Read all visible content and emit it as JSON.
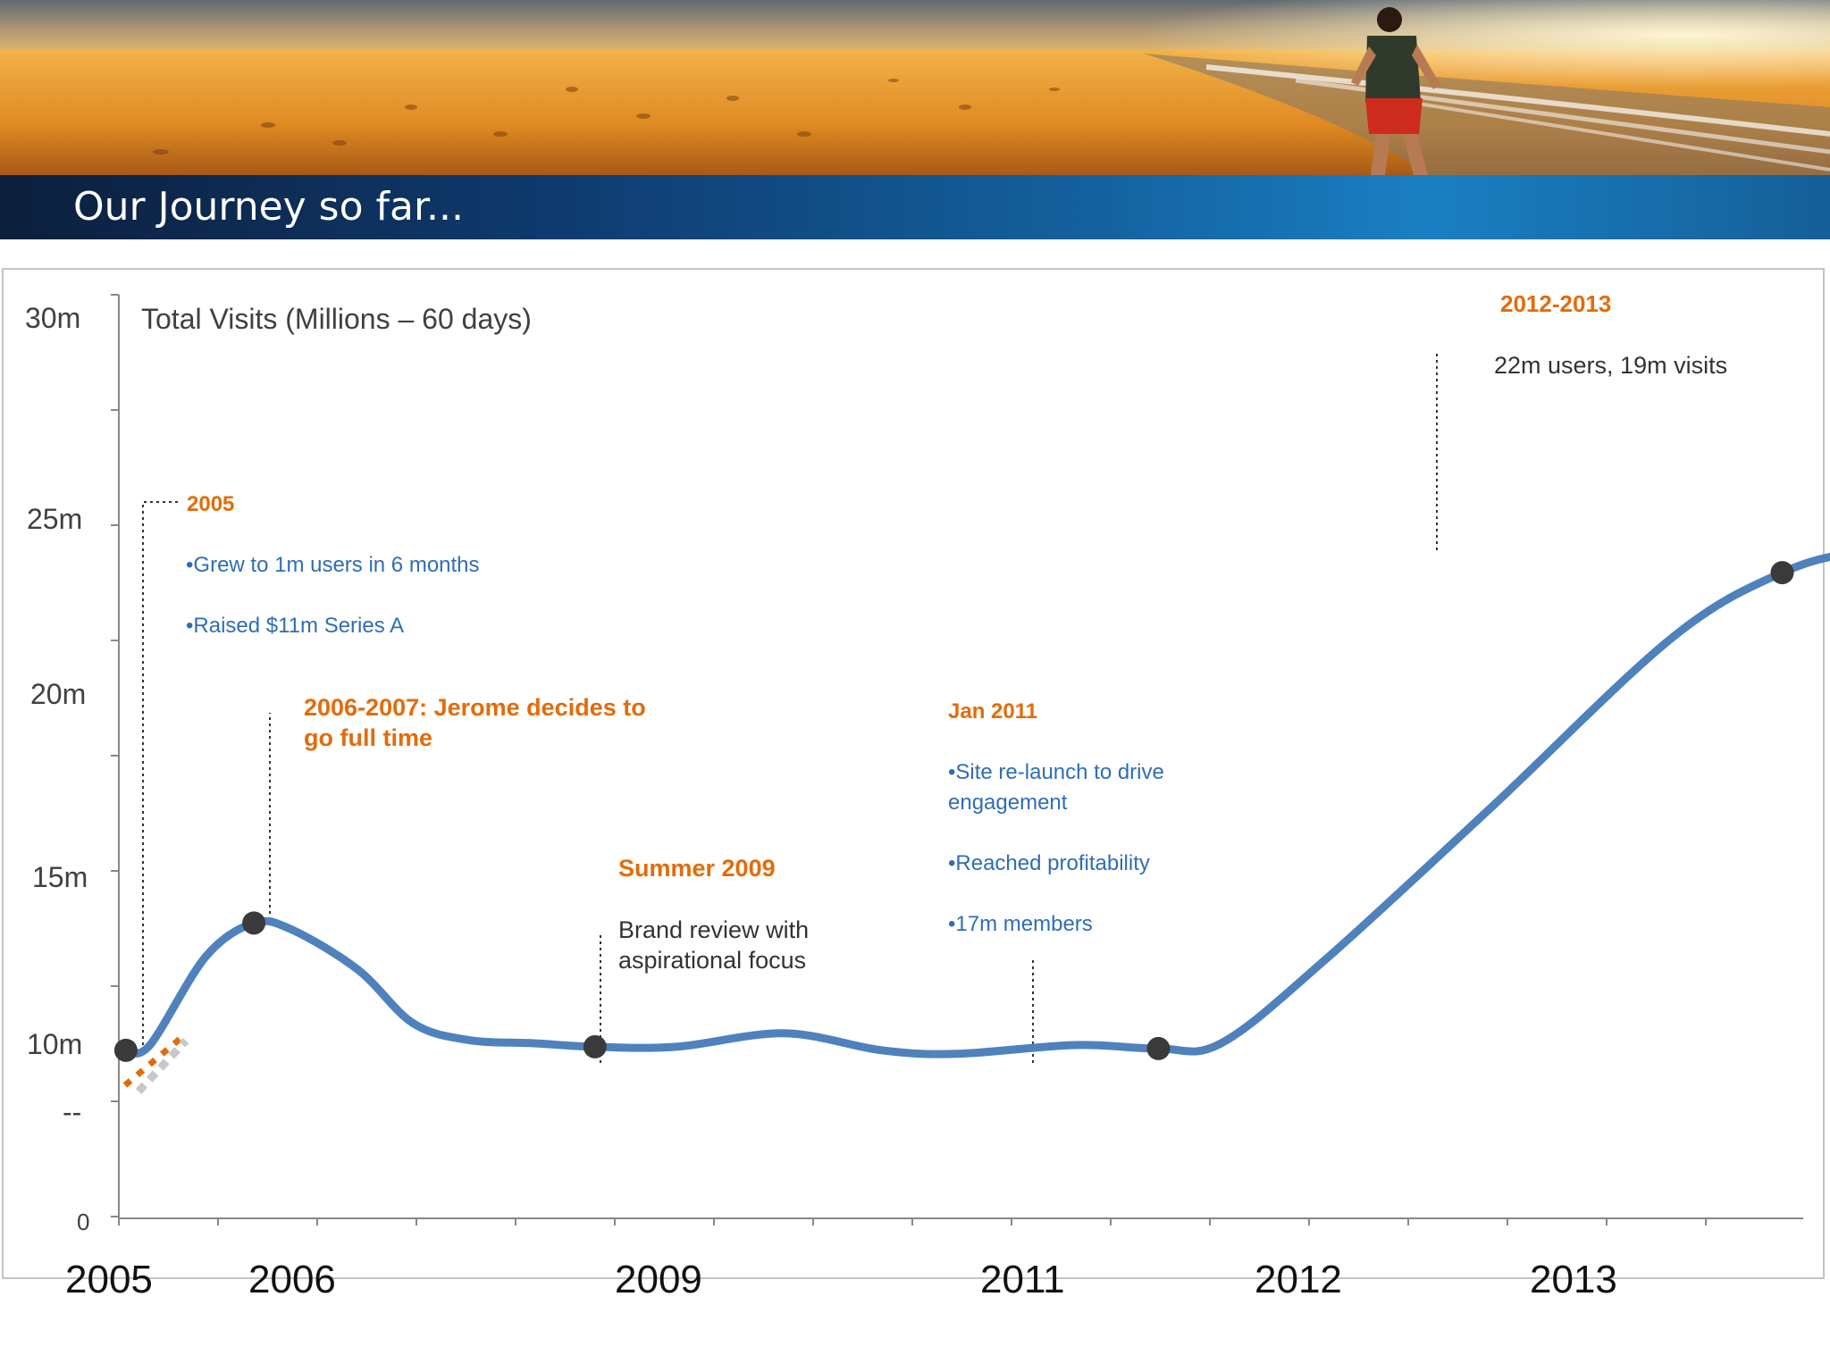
{
  "header": {
    "title": "Our Journey so far..."
  },
  "colors": {
    "line": "#4f81bd",
    "marker": "#3a3a3a",
    "accent": "#e36c09",
    "bullet": "#2f6db5",
    "title_bar": "#0f3a6e"
  },
  "chart_data": {
    "type": "line",
    "title": "Total Visits (Millions – 60 days)",
    "xlabel": "",
    "ylabel": "",
    "y_ticks": [
      "30m",
      "25m",
      "20m",
      "15m",
      "10m",
      "--",
      "0"
    ],
    "x_ticks": [
      "2005",
      "2006",
      "2009",
      "2011",
      "2012",
      "2013"
    ],
    "grid": false,
    "series": [
      {
        "name": "",
        "points": [
          {
            "x": 2005.1,
            "y": 9.6
          },
          {
            "x": 2005.25,
            "y": 9.9
          },
          {
            "x": 2005.6,
            "y": 12.6
          },
          {
            "x": 2005.9,
            "y": 13.6
          },
          {
            "x": 2006.2,
            "y": 13.4
          },
          {
            "x": 2006.8,
            "y": 12.2
          },
          {
            "x": 2007.3,
            "y": 10.6
          },
          {
            "x": 2007.8,
            "y": 10.1
          },
          {
            "x": 2008.4,
            "y": 10.0
          },
          {
            "x": 2008.95,
            "y": 9.8
          },
          {
            "x": 2009.35,
            "y": 9.8
          },
          {
            "x": 2009.85,
            "y": 10.3
          },
          {
            "x": 2010.3,
            "y": 9.6
          },
          {
            "x": 2010.65,
            "y": 9.4
          },
          {
            "x": 2011.2,
            "y": 9.9
          },
          {
            "x": 2011.6,
            "y": 9.7
          },
          {
            "x": 2011.9,
            "y": 10.0
          },
          {
            "x": 2012.3,
            "y": 12.5
          },
          {
            "x": 2012.9,
            "y": 17.0
          },
          {
            "x": 2013.55,
            "y": 21.8
          },
          {
            "x": 2013.95,
            "y": 23.6
          },
          {
            "x": 2014.25,
            "y": 24.2
          },
          {
            "x": 2014.6,
            "y": 24.4
          },
          {
            "x": 2015.2,
            "y": 25.1
          },
          {
            "x": 2015.95,
            "y": 26.0
          }
        ]
      }
    ],
    "milestones": [
      {
        "x": 2005.1,
        "y": 9.6
      },
      {
        "x": 2005.9,
        "y": 13.6
      },
      {
        "x": 2008.95,
        "y": 9.8
      },
      {
        "x": 2011.6,
        "y": 9.7
      },
      {
        "x": 2013.95,
        "y": 23.6
      }
    ],
    "annotations": {
      "a2005": {
        "heading": "2005",
        "bullets": [
          "•Grew to 1m users in 6 months",
          "•Raised $11m Series A"
        ]
      },
      "a2006": {
        "heading_line1": "2006-2007: Jerome decides to",
        "heading_line2": "go full time"
      },
      "a2009": {
        "heading": "Summer 2009",
        "line1": "Brand review with",
        "line2": "aspirational focus"
      },
      "a2011": {
        "heading": "Jan 2011",
        "b1_line1": "•Site re-launch to drive",
        "b1_line2": "engagement",
        "b2": "•Reached profitability",
        "b3": "•17m members"
      },
      "a2012": {
        "heading": "2012-2013",
        "text": "22m users, 19m visits"
      }
    }
  }
}
